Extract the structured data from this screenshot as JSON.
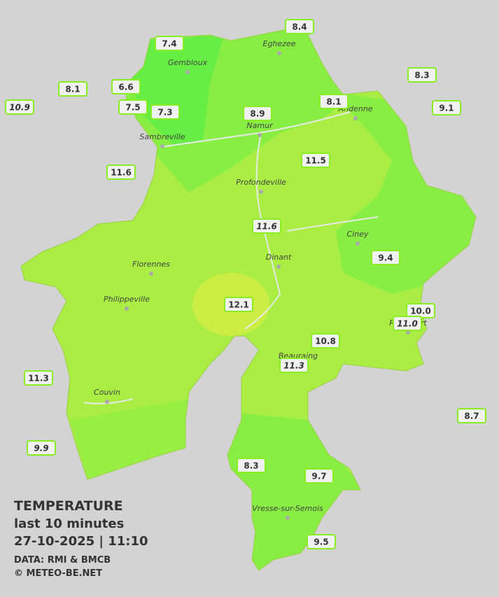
{
  "legend": {
    "title": "TEMPERATURE",
    "subtitle": "last 10 minutes",
    "datetime": "27-10-2025  |  11:10",
    "source": "DATA: RMI & BMCB",
    "credit": "© METEO-BE.NET"
  },
  "towns": [
    "Gembloux",
    "Eghezee",
    "Andenne",
    "Namur",
    "Sambreville",
    "Profondeville",
    "Ciney",
    "Dinant",
    "Florennes",
    "Philippeville",
    "Rochefort",
    "Beauraing",
    "Couvin",
    "Vresse-sur-Semois"
  ],
  "stations": [
    "7.4",
    "8.4",
    "8.3",
    "8.1",
    "6.6",
    "8.1",
    "10.9",
    "7.5",
    "7.3",
    "8.9",
    "9.1",
    "11.5",
    "11.6",
    "11.6",
    "9.4",
    "12.1",
    "10.0",
    "11.0",
    "10.8",
    "11.3",
    "11.3",
    "8.7",
    "9.9",
    "8.3",
    "9.7",
    "9.5"
  ]
}
